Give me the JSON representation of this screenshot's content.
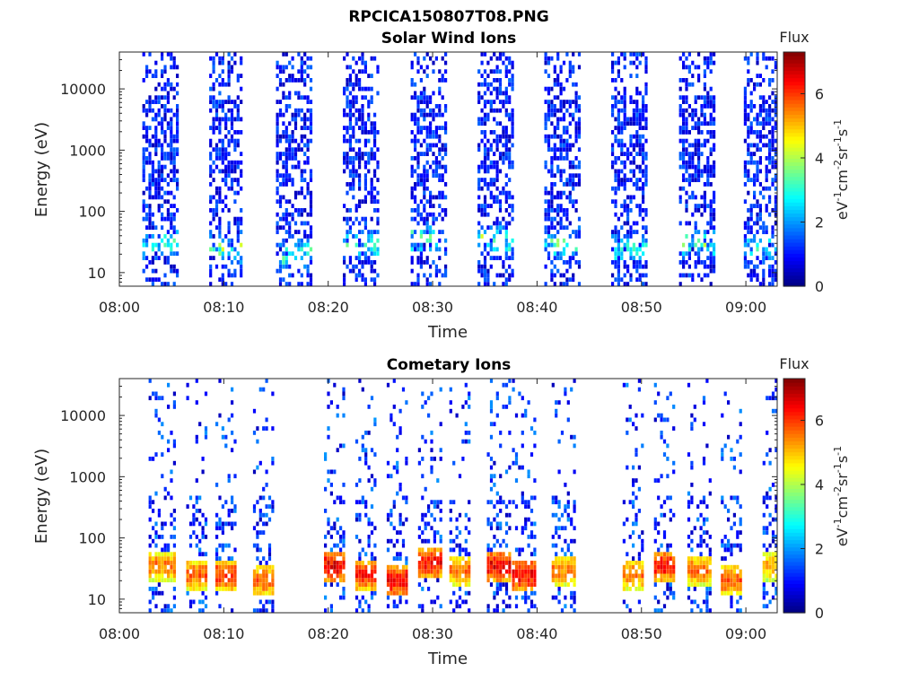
{
  "figure_title": "RPCICA150807T08.PNG",
  "chart_data": [
    {
      "type": "heatmap",
      "title": "Solar Wind Ions",
      "xlabel": "Time",
      "ylabel": "Energy (eV)",
      "yscale": "log",
      "ylim": [
        6,
        40000
      ],
      "xlim": [
        "08:00",
        "09:03"
      ],
      "x_ticks": [
        "08:00",
        "08:10",
        "08:20",
        "08:30",
        "08:40",
        "08:50",
        "09:00"
      ],
      "y_ticks": [
        "10",
        "100",
        "1000",
        "10000"
      ],
      "colorbar": {
        "title": "Flux",
        "label": "eV-1cm-2sr-1s-1",
        "label_parts": [
          "eV",
          "-1",
          "cm",
          "-2",
          "sr",
          "-1",
          "s",
          "-1"
        ],
        "ticks": [
          "0",
          "2",
          "4",
          "6"
        ],
        "range": [
          0,
          7.3
        ],
        "colormap": "jet"
      },
      "bursts": [
        {
          "start": "08:02.2",
          "end": "08:05.5",
          "peak_energy_eV": 30,
          "peak_flux": 4.0
        },
        {
          "start": "08:08.6",
          "end": "08:11.8",
          "peak_energy_eV": 25,
          "peak_flux": 4.0
        },
        {
          "start": "08:15.0",
          "end": "08:18.3",
          "peak_energy_eV": 20,
          "peak_flux": 3.8
        },
        {
          "start": "08:21.4",
          "end": "08:24.8",
          "peak_energy_eV": 30,
          "peak_flux": 4.0
        },
        {
          "start": "08:27.9",
          "end": "08:31.2",
          "peak_energy_eV": 35,
          "peak_flux": 4.0
        },
        {
          "start": "08:34.3",
          "end": "08:37.8",
          "peak_energy_eV": 35,
          "peak_flux": 4.2
        },
        {
          "start": "08:40.7",
          "end": "08:44.2",
          "peak_energy_eV": 30,
          "peak_flux": 3.8
        },
        {
          "start": "08:47.1",
          "end": "08:50.6",
          "peak_energy_eV": 25,
          "peak_flux": 3.5
        },
        {
          "start": "08:53.6",
          "end": "08:57.0",
          "peak_energy_eV": 30,
          "peak_flux": 3.6
        },
        {
          "start": "08:59.8",
          "end": "09:02.8",
          "peak_energy_eV": 25,
          "peak_flux": 3.2
        }
      ]
    },
    {
      "type": "heatmap",
      "title": "Cometary Ions",
      "xlabel": "Time",
      "ylabel": "Energy (eV)",
      "yscale": "log",
      "ylim": [
        6,
        40000
      ],
      "xlim": [
        "08:00",
        "09:03"
      ],
      "x_ticks": [
        "08:00",
        "08:10",
        "08:20",
        "08:30",
        "08:40",
        "08:50",
        "09:00"
      ],
      "y_ticks": [
        "10",
        "100",
        "1000",
        "10000"
      ],
      "colorbar": {
        "title": "Flux",
        "label": "eV-1cm-2sr-1s-1",
        "label_parts": [
          "eV",
          "-1",
          "cm",
          "-2",
          "sr",
          "-1",
          "s",
          "-1"
        ],
        "ticks": [
          "0",
          "2",
          "4",
          "6"
        ],
        "range": [
          0,
          7.3
        ],
        "colormap": "jet"
      },
      "bursts": [
        {
          "start": "08:02.8",
          "end": "08:05.2",
          "peak_energy_eV": 35,
          "peak_flux": 6.0
        },
        {
          "start": "08:06.4",
          "end": "08:08.2",
          "peak_energy_eV": 25,
          "peak_flux": 6.2
        },
        {
          "start": "08:09.2",
          "end": "08:11.2",
          "peak_energy_eV": 25,
          "peak_flux": 6.5
        },
        {
          "start": "08:12.8",
          "end": "08:14.8",
          "peak_energy_eV": 20,
          "peak_flux": 6.2
        },
        {
          "start": "08:19.6",
          "end": "08:21.6",
          "peak_energy_eV": 35,
          "peak_flux": 7.0
        },
        {
          "start": "08:22.6",
          "end": "08:24.4",
          "peak_energy_eV": 25,
          "peak_flux": 6.6
        },
        {
          "start": "08:25.6",
          "end": "08:27.6",
          "peak_energy_eV": 20,
          "peak_flux": 7.0
        },
        {
          "start": "08:28.6",
          "end": "08:30.8",
          "peak_energy_eV": 40,
          "peak_flux": 6.8
        },
        {
          "start": "08:31.6",
          "end": "08:33.6",
          "peak_energy_eV": 30,
          "peak_flux": 6.0
        },
        {
          "start": "08:35.2",
          "end": "08:37.4",
          "peak_energy_eV": 35,
          "peak_flux": 7.0
        },
        {
          "start": "08:37.6",
          "end": "08:39.8",
          "peak_energy_eV": 25,
          "peak_flux": 7.0
        },
        {
          "start": "08:41.4",
          "end": "08:43.6",
          "peak_energy_eV": 30,
          "peak_flux": 6.0
        },
        {
          "start": "08:48.2",
          "end": "08:50.2",
          "peak_energy_eV": 25,
          "peak_flux": 6.0
        },
        {
          "start": "08:51.2",
          "end": "08:53.2",
          "peak_energy_eV": 35,
          "peak_flux": 6.8
        },
        {
          "start": "08:54.4",
          "end": "08:56.6",
          "peak_energy_eV": 30,
          "peak_flux": 6.0
        },
        {
          "start": "08:57.6",
          "end": "08:59.6",
          "peak_energy_eV": 20,
          "peak_flux": 6.2
        },
        {
          "start": "09:01.6",
          "end": "09:03.0",
          "peak_energy_eV": 35,
          "peak_flux": 5.6
        }
      ]
    }
  ]
}
